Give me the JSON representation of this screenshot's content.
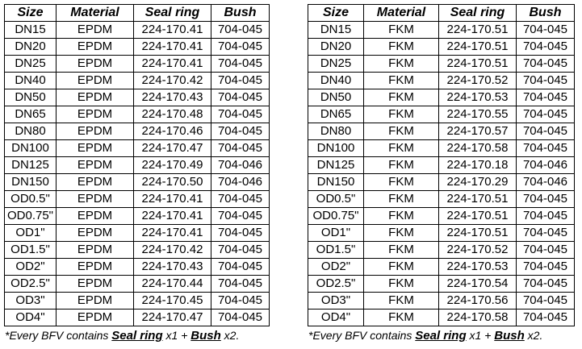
{
  "headers": [
    "Size",
    "Material",
    "Seal ring",
    "Bush"
  ],
  "left_table": {
    "rows": [
      [
        "DN15",
        "EPDM",
        "224-170.41",
        "704-045"
      ],
      [
        "DN20",
        "EPDM",
        "224-170.41",
        "704-045"
      ],
      [
        "DN25",
        "EPDM",
        "224-170.41",
        "704-045"
      ],
      [
        "DN40",
        "EPDM",
        "224-170.42",
        "704-045"
      ],
      [
        "DN50",
        "EPDM",
        "224-170.43",
        "704-045"
      ],
      [
        "DN65",
        "EPDM",
        "224-170.48",
        "704-045"
      ],
      [
        "DN80",
        "EPDM",
        "224-170.46",
        "704-045"
      ],
      [
        "DN100",
        "EPDM",
        "224-170.47",
        "704-045"
      ],
      [
        "DN125",
        "EPDM",
        "224-170.49",
        "704-046"
      ],
      [
        "DN150",
        "EPDM",
        "224-170.50",
        "704-046"
      ],
      [
        "OD0.5\"",
        "EPDM",
        "224-170.41",
        "704-045"
      ],
      [
        "OD0.75\"",
        "EPDM",
        "224-170.41",
        "704-045"
      ],
      [
        "OD1\"",
        "EPDM",
        "224-170.41",
        "704-045"
      ],
      [
        "OD1.5\"",
        "EPDM",
        "224-170.42",
        "704-045"
      ],
      [
        "OD2\"",
        "EPDM",
        "224-170.43",
        "704-045"
      ],
      [
        "OD2.5\"",
        "EPDM",
        "224-170.44",
        "704-045"
      ],
      [
        "OD3\"",
        "EPDM",
        "224-170.45",
        "704-045"
      ],
      [
        "OD4\"",
        "EPDM",
        "224-170.47",
        "704-045"
      ]
    ]
  },
  "right_table": {
    "rows": [
      [
        "DN15",
        "FKM",
        "224-170.51",
        "704-045"
      ],
      [
        "DN20",
        "FKM",
        "224-170.51",
        "704-045"
      ],
      [
        "DN25",
        "FKM",
        "224-170.51",
        "704-045"
      ],
      [
        "DN40",
        "FKM",
        "224-170.52",
        "704-045"
      ],
      [
        "DN50",
        "FKM",
        "224-170.53",
        "704-045"
      ],
      [
        "DN65",
        "FKM",
        "224-170.55",
        "704-045"
      ],
      [
        "DN80",
        "FKM",
        "224-170.57",
        "704-045"
      ],
      [
        "DN100",
        "FKM",
        "224-170.58",
        "704-045"
      ],
      [
        "DN125",
        "FKM",
        "224-170.18",
        "704-046"
      ],
      [
        "DN150",
        "FKM",
        "224-170.29",
        "704-046"
      ],
      [
        "OD0.5\"",
        "FKM",
        "224-170.51",
        "704-045"
      ],
      [
        "OD0.75\"",
        "FKM",
        "224-170.51",
        "704-045"
      ],
      [
        "OD1\"",
        "FKM",
        "224-170.51",
        "704-045"
      ],
      [
        "OD1.5\"",
        "FKM",
        "224-170.52",
        "704-045"
      ],
      [
        "OD2\"",
        "FKM",
        "224-170.53",
        "704-045"
      ],
      [
        "OD2.5\"",
        "FKM",
        "224-170.54",
        "704-045"
      ],
      [
        "OD3\"",
        "FKM",
        "224-170.56",
        "704-045"
      ],
      [
        "OD4\"",
        "FKM",
        "224-170.58",
        "704-045"
      ]
    ]
  },
  "note": {
    "prefix": "*Every BFV contains ",
    "item1": "Seal ring",
    "qty1": " x1 + ",
    "item2": "Bush",
    "qty2": " x2."
  }
}
